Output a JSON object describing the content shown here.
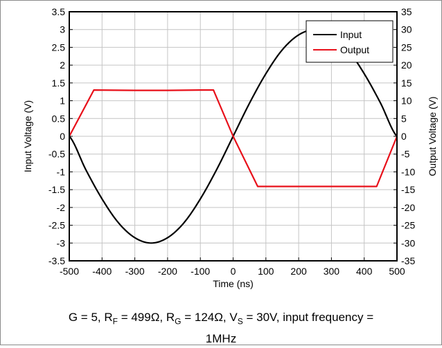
{
  "chart_data": {
    "type": "line",
    "xlabel": "Time (ns)",
    "ylabel": "Input Voltage (V)",
    "y2label": "Output Voltage (V)",
    "xlim": [
      -500,
      500
    ],
    "ylim": [
      -3.5,
      3.5
    ],
    "y2lim": [
      -35,
      35
    ],
    "x_ticks": [
      "-500",
      "-400",
      "-300",
      "-200",
      "-100",
      "0",
      "100",
      "200",
      "300",
      "400",
      "500"
    ],
    "y_ticks": [
      "3.5",
      "3",
      "2.5",
      "2",
      "1.5",
      "1",
      "0.5",
      "0",
      "-0.5",
      "-1",
      "-1.5",
      "-2",
      "-2.5",
      "-3",
      "-3.5"
    ],
    "y2_ticks": [
      "35",
      "30",
      "25",
      "20",
      "15",
      "10",
      "5",
      "0",
      "-5",
      "-10",
      "-15",
      "-20",
      "-25",
      "-30",
      "-35"
    ],
    "grid": true,
    "legend_position": "top-right",
    "series": [
      {
        "name": "Input",
        "axis": "left",
        "color": "#000000",
        "x": [
          -500,
          -450,
          -400,
          -350,
          -300,
          -250,
          -200,
          -150,
          -100,
          -50,
          0,
          50,
          100,
          150,
          200,
          250,
          300,
          350,
          400,
          450,
          500
        ],
        "y": [
          0,
          -0.93,
          -1.76,
          -2.43,
          -2.85,
          -3.0,
          -2.85,
          -2.43,
          -1.76,
          -0.93,
          0,
          0.93,
          1.76,
          2.43,
          2.85,
          3.0,
          2.85,
          2.43,
          1.76,
          0.93,
          0
        ]
      },
      {
        "name": "Output",
        "axis": "right",
        "color": "#e8101a",
        "x": [
          -500,
          -425,
          -300,
          -200,
          -100,
          -60,
          0,
          75,
          150,
          300,
          400,
          438,
          500
        ],
        "y": [
          0,
          13,
          12.9,
          12.9,
          13,
          13,
          0,
          -14.1,
          -14.1,
          -14.1,
          -14.1,
          -14.1,
          0
        ]
      }
    ]
  },
  "caption": {
    "text1": "G = 5, R",
    "sub1": "F",
    "text2": " = 499Ω, R",
    "sub2": "G",
    "text3": " = 124Ω, V",
    "sub3": "S",
    "text4": " = 30V, input frequency =",
    "line2": "1MHz"
  }
}
